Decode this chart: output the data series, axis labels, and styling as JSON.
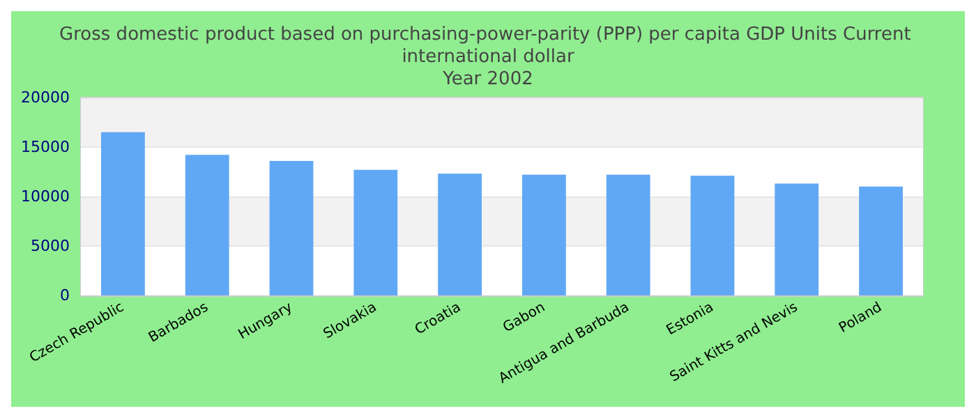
{
  "chart_data": {
    "type": "bar",
    "title": "Gross domestic product based on purchasing-power-parity (PPP) per capita GDP Units Current international dollar\nYear 2002",
    "categories": [
      "Czech Republic",
      "Barbados",
      "Hungary",
      "Slovakia",
      "Croatia",
      "Gabon",
      "Antigua and Barbuda",
      "Estonia",
      "Saint Kitts and Nevis",
      "Poland"
    ],
    "values": [
      16500,
      14200,
      13600,
      12700,
      12300,
      12200,
      12200,
      12100,
      11300,
      11000
    ],
    "color": "#60a8f5",
    "ylim": [
      0,
      20000
    ],
    "yticks": [
      0,
      5000,
      10000,
      15000,
      20000
    ],
    "grid": "y"
  }
}
